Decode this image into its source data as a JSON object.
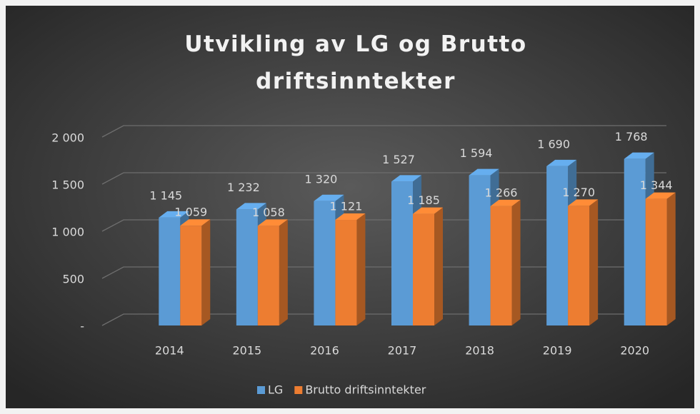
{
  "chart_data": {
    "type": "bar3d",
    "title": "Utvikling av LG og Brutto driftsinntekter",
    "categories": [
      "2014",
      "2015",
      "2016",
      "2017",
      "2018",
      "2019",
      "2020"
    ],
    "series": [
      {
        "name": "LG",
        "color": "#5b9bd5",
        "values": [
          1145,
          1232,
          1320,
          1527,
          1594,
          1690,
          1768
        ],
        "value_labels": [
          "1 145",
          "1 232",
          "1 320",
          "1 527",
          "1 594",
          "1 690",
          "1 768"
        ]
      },
      {
        "name": "Brutto driftsinntekter",
        "color": "#ed7d31",
        "values": [
          1059,
          1058,
          1121,
          1185,
          1266,
          1270,
          1344
        ],
        "value_labels": [
          "1 059",
          "1 058",
          "1 121",
          "1 185",
          "1 266",
          "1 270",
          "1 344"
        ]
      }
    ],
    "ylim": [
      0,
      2000
    ],
    "yticks": [
      {
        "value": 0,
        "label": "-"
      },
      500,
      {
        "value": 1000,
        "label": "1 000"
      },
      {
        "value": 1500,
        "label": "1 500"
      },
      {
        "value": 2000,
        "label": "2 000"
      }
    ],
    "grid": true,
    "legend": "bottom"
  }
}
